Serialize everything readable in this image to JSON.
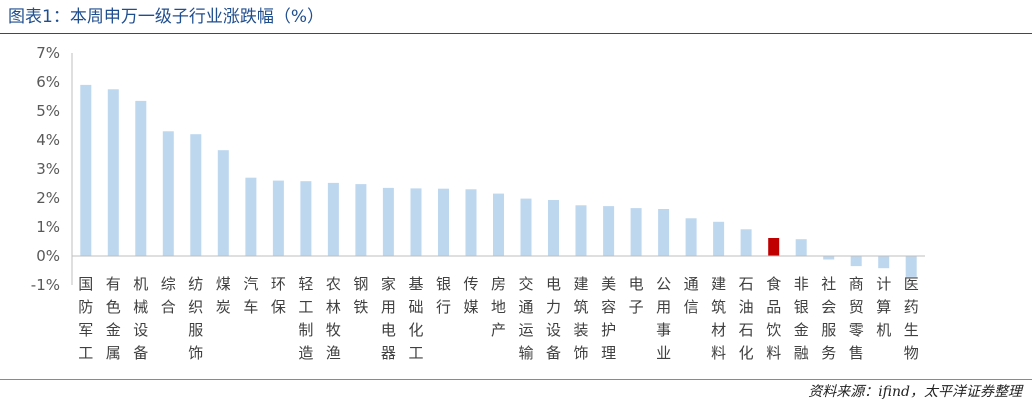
{
  "header": {
    "title": "图表1：本周申万一级子行业涨跌幅（%）"
  },
  "footer": {
    "source": "资料来源：ifind，太平洋证券整理"
  },
  "colors": {
    "bar": "#bdd7ee",
    "highlight": "#c00000",
    "title": "#1f4e8f"
  },
  "chart_data": {
    "type": "bar",
    "title": "",
    "xlabel": "",
    "ylabel": "",
    "ylim": [
      -1,
      7
    ],
    "yticks": [
      -1,
      0,
      1,
      2,
      3,
      4,
      5,
      6,
      7
    ],
    "ytick_labels": [
      "-1%",
      "0%",
      "1%",
      "2%",
      "3%",
      "4%",
      "5%",
      "6%",
      "7%"
    ],
    "grid": false,
    "highlight_category": "食品饮料",
    "categories": [
      "国防军工",
      "有色金属",
      "机械设备",
      "综合",
      "纺织服饰",
      "煤炭",
      "汽车",
      "环保",
      "轻工制造",
      "农林牧渔",
      "钢铁",
      "家用电器",
      "基础化工",
      "银行",
      "传媒",
      "房地产",
      "交通运输",
      "电力设备",
      "建筑装饰",
      "美容护理",
      "电子",
      "公用事业",
      "通信",
      "建筑材料",
      "石油石化",
      "食品饮料",
      "非银金融",
      "社会服务",
      "商贸零售",
      "计算机",
      "医药生物"
    ],
    "values": [
      5.9,
      5.75,
      5.35,
      4.3,
      4.2,
      3.65,
      2.7,
      2.6,
      2.58,
      2.52,
      2.48,
      2.35,
      2.33,
      2.32,
      2.3,
      2.15,
      1.98,
      1.93,
      1.75,
      1.72,
      1.65,
      1.62,
      1.3,
      1.18,
      0.92,
      0.62,
      0.58,
      -0.12,
      -0.35,
      -0.42,
      -0.72
    ]
  }
}
